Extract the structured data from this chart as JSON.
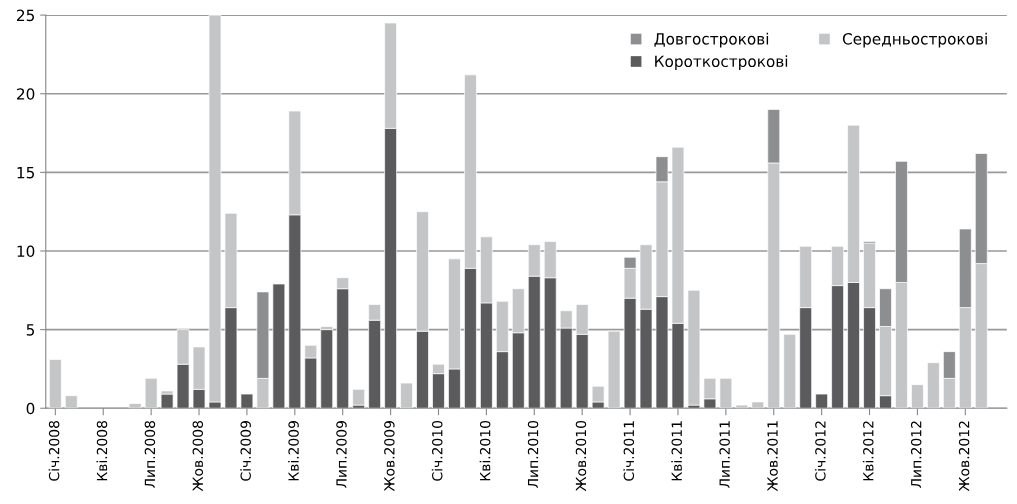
{
  "chart_data": {
    "type": "bar",
    "stacked": true,
    "categories": [
      "Січ.2008",
      null,
      null,
      "Кві.2008",
      null,
      null,
      "Лип.2008",
      null,
      null,
      "Жов.2008",
      null,
      null,
      "Січ.2009",
      null,
      null,
      "Кві.2009",
      null,
      null,
      "Лип.2009",
      null,
      null,
      "Жов.2009",
      null,
      null,
      "Січ.2010",
      null,
      null,
      "Кві.2010",
      null,
      null,
      "Лип.2010",
      null,
      null,
      "Жов.2010",
      null,
      null,
      "Січ.2011",
      null,
      null,
      "Кві.2011",
      null,
      null,
      "Лип.2011",
      null,
      null,
      "Жов.2011",
      null,
      null,
      "Січ.2012",
      null,
      null,
      "Кві.2012",
      null,
      null,
      "Лип.2012",
      null,
      null,
      "Жов.2012",
      null,
      null
    ],
    "series": [
      {
        "name": "Короткострокові",
        "color": "#5b5b5d",
        "values": [
          0,
          0,
          0,
          0,
          0,
          0,
          0,
          0.9,
          2.8,
          1.2,
          0.4,
          6.4,
          0.9,
          0,
          7.9,
          12.3,
          3.2,
          5.0,
          7.6,
          0.2,
          5.6,
          17.8,
          0,
          4.9,
          2.2,
          2.5,
          8.9,
          6.7,
          3.6,
          4.8,
          8.4,
          8.3,
          5.1,
          4.7,
          0.4,
          0,
          7.0,
          6.3,
          7.1,
          5.4,
          0.2,
          0.6,
          0,
          0,
          0,
          0,
          0,
          6.4,
          0.9,
          7.8,
          8.0,
          6.4,
          0.8,
          0,
          0,
          0,
          0,
          0,
          0,
          0
        ]
      },
      {
        "name": "Середньострокові",
        "color": "#c4c5c7",
        "values": [
          3.1,
          0.8,
          0,
          0,
          0,
          0.3,
          1.9,
          0.2,
          2.2,
          2.7,
          24.6,
          6.0,
          0,
          1.9,
          0,
          6.6,
          0.8,
          0.2,
          0.7,
          1.0,
          1.0,
          6.7,
          1.6,
          7.6,
          0.6,
          7.0,
          12.3,
          4.2,
          3.2,
          2.8,
          2.0,
          2.3,
          1.1,
          1.9,
          1.0,
          4.9,
          1.9,
          4.1,
          7.3,
          11.2,
          7.3,
          1.3,
          1.9,
          0.2,
          0.4,
          15.6,
          4.7,
          3.9,
          0,
          2.5,
          10.0,
          4.1,
          4.4,
          8.0,
          1.5,
          2.9,
          1.9,
          6.4,
          9.2,
          0
        ]
      },
      {
        "name": "Довгострокові",
        "color": "#8d8e90",
        "values": [
          0,
          0,
          0,
          0,
          0,
          0,
          0,
          0,
          0,
          0,
          0,
          0,
          0,
          5.5,
          0,
          0,
          0,
          0,
          0,
          0,
          0,
          0,
          0,
          0,
          0,
          0,
          0,
          0,
          0,
          0,
          0,
          0,
          0,
          0,
          0,
          0,
          0.7,
          0,
          1.6,
          0,
          0,
          0,
          0,
          0,
          0,
          3.4,
          0,
          0,
          0,
          0,
          0,
          0.1,
          2.4,
          7.7,
          0,
          0,
          1.7,
          5.0,
          7.0,
          0
        ]
      }
    ],
    "ylim": [
      0,
      25
    ],
    "yticks": [
      0,
      5,
      10,
      15,
      20,
      25
    ],
    "grid": "y",
    "legend": "top right"
  }
}
